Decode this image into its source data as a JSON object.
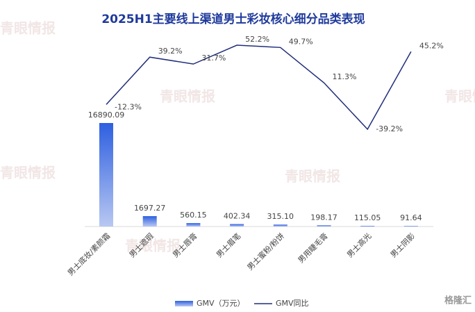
{
  "chart_data": {
    "type": "bar-line",
    "title": "2025H1主要线上渠道男士彩妆核心细分品类表现",
    "categories": [
      "男士底妆/素颜霜",
      "男士遮瑕",
      "男士唇膏",
      "男士眉笔",
      "男士蜜粉/粉饼",
      "男用睫毛膏",
      "男士高光",
      "男士阴影"
    ],
    "series": [
      {
        "name": "GMV（万元）",
        "type": "bar",
        "color": "#2d5fe0",
        "values": [
          16890.09,
          1697.27,
          560.15,
          402.34,
          315.1,
          198.17,
          115.05,
          91.64
        ],
        "value_labels": [
          "16890.09",
          "1697.27",
          "560.15",
          "402.34",
          "315.10",
          "198.17",
          "115.05",
          "91.64"
        ]
      },
      {
        "name": "GMV同比",
        "type": "line",
        "color": "#1f2d7a",
        "values": [
          -12.3,
          39.2,
          31.7,
          52.2,
          49.7,
          11.3,
          -39.2,
          45.2
        ],
        "value_labels": [
          "-12.3%",
          "39.2%",
          "31.7%",
          "52.2%",
          "49.7%",
          "11.3%",
          "-39.2%",
          "45.2%"
        ]
      }
    ],
    "watermark": "青眼情报",
    "logo": "格隆汇"
  }
}
